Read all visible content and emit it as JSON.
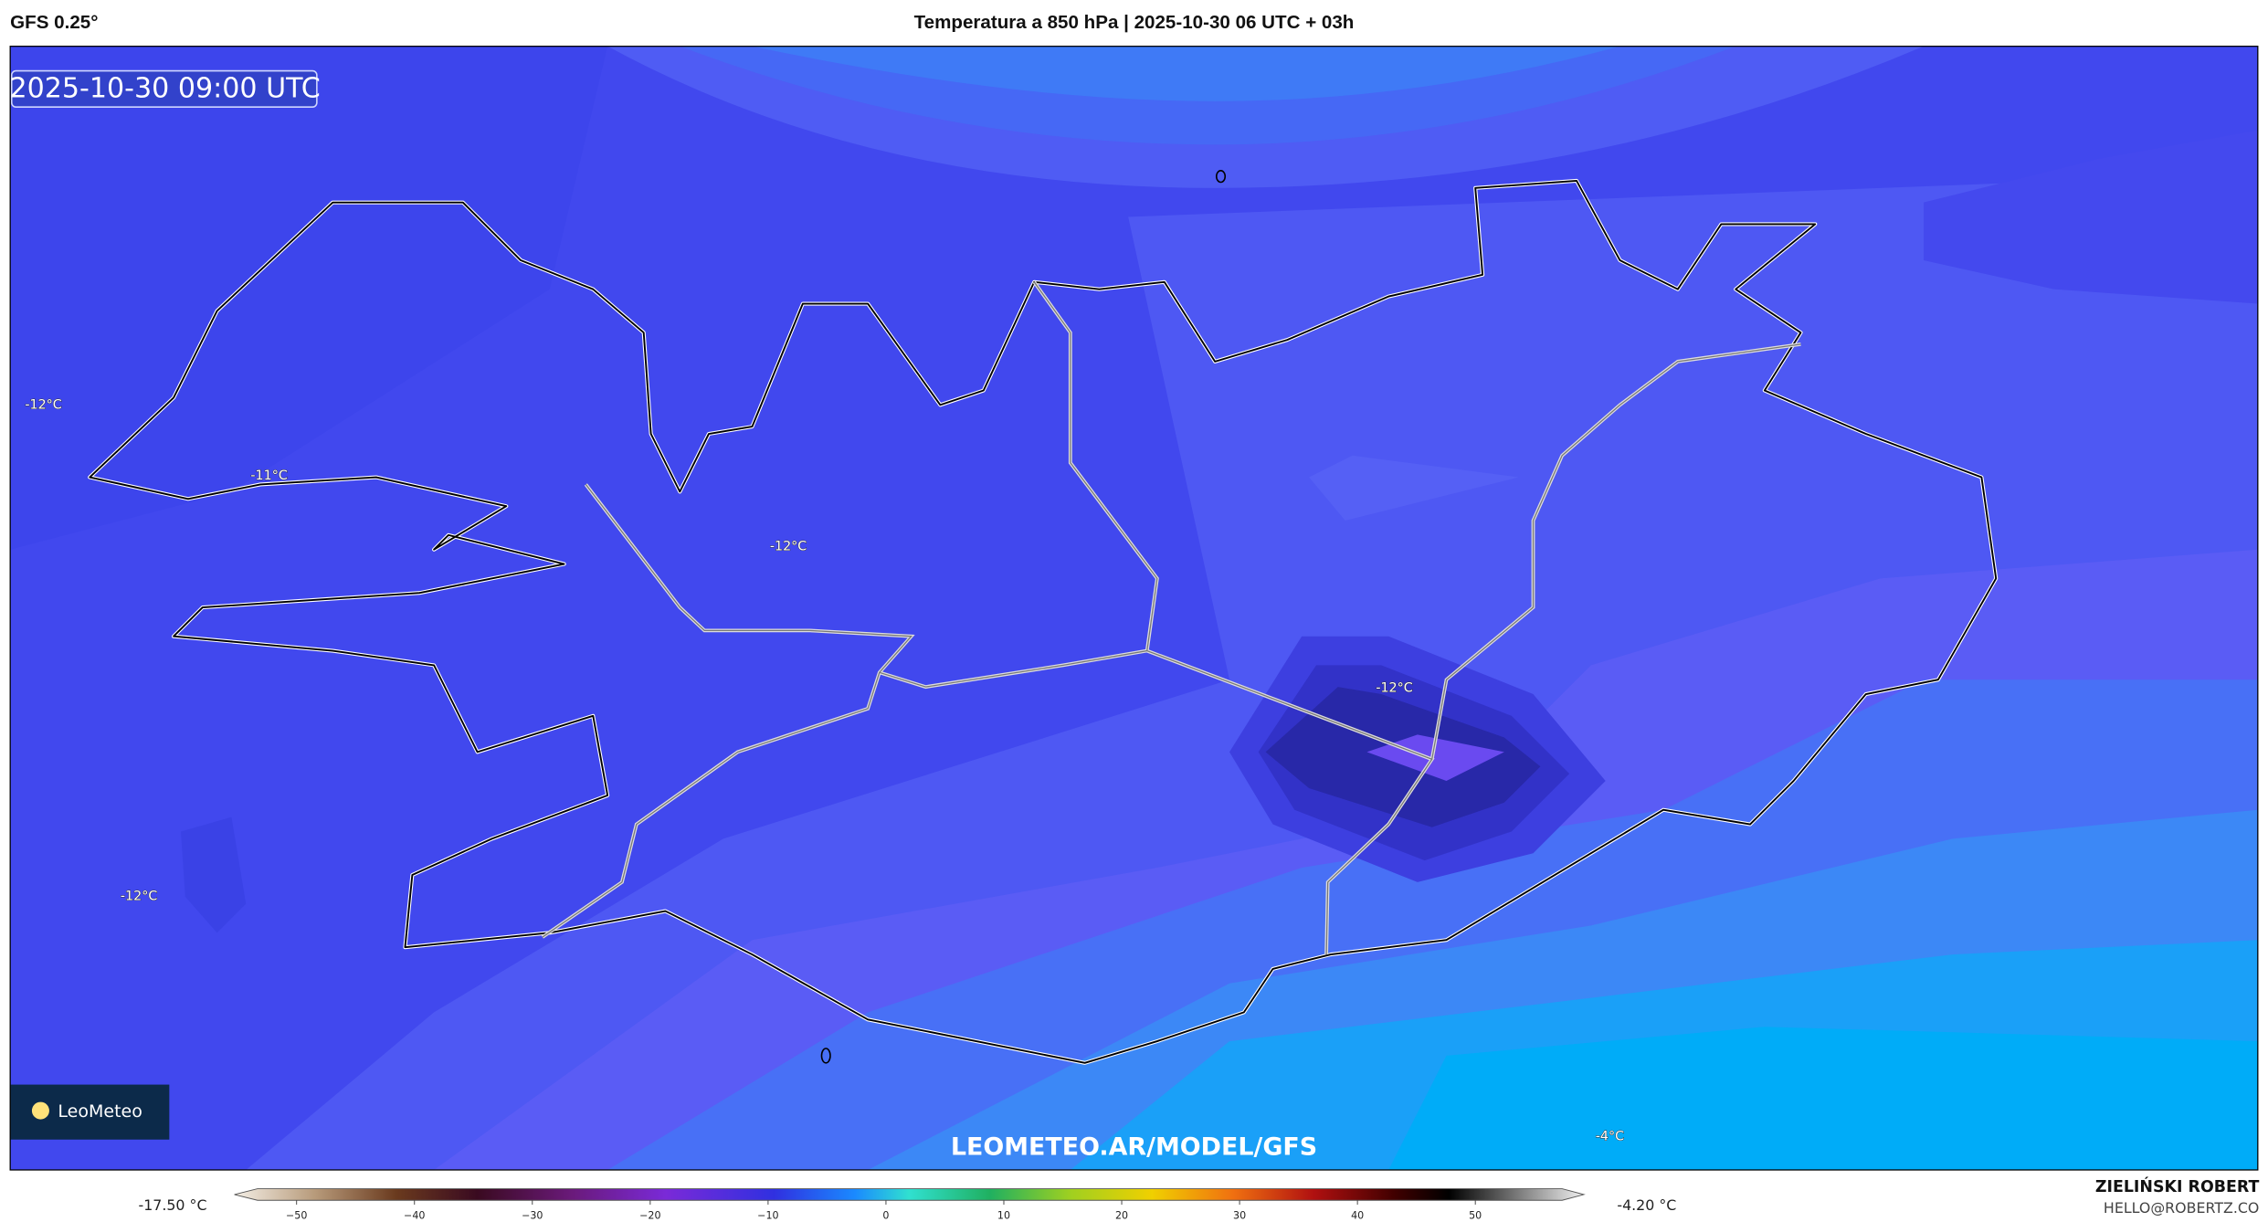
{
  "header": {
    "model": "GFS 0.25°",
    "title": "Temperatura a 850 hPa | 2025-10-30 06 UTC + 03h"
  },
  "map": {
    "timestamp": "2025-10-30 09:00 UTC",
    "contour_labels": [
      "-12°C",
      "-11°C",
      "-12°C",
      "-12°C",
      "-12°C",
      "-4°C"
    ],
    "watermark": "LEOMETEO.AR/MODEL/GFS",
    "logo": "LeoMeteo"
  },
  "colorbar": {
    "min_label": "-17.50 °C",
    "max_label": "-4.20 °C",
    "ticks": [
      "−50",
      "−40",
      "−30",
      "−20",
      "−10",
      "0",
      "10",
      "20",
      "30",
      "40",
      "50"
    ]
  },
  "footer": {
    "author": "ZIELIŃSKI ROBERT",
    "email": "HELLO@ROBERTZ.CO"
  }
}
